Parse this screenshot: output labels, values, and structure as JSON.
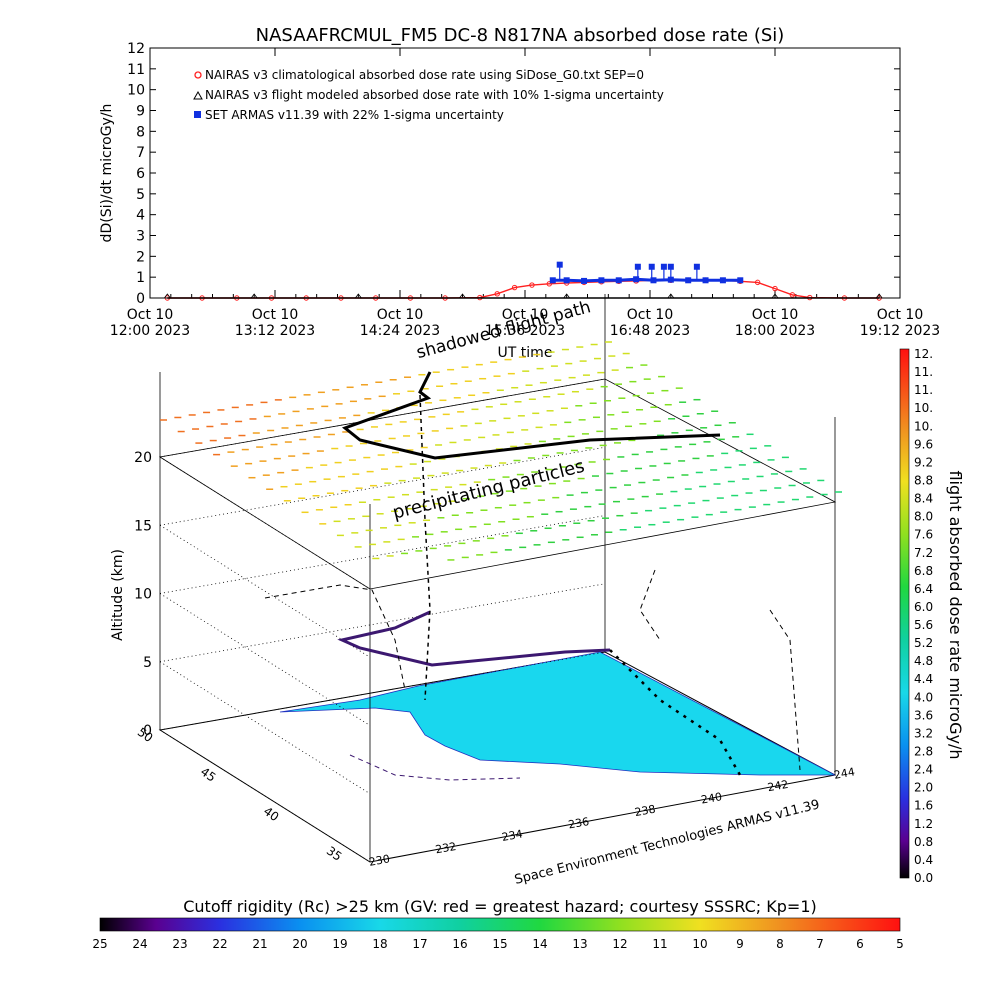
{
  "chart_data": [
    {
      "type": "line",
      "title": "NASAAFRCMUL_FM5 DC-8   N817NA absorbed dose rate (Si)",
      "ylabel": "dD(Si)/dt microGy/h",
      "xlabel": "UT time",
      "ylim": [
        0,
        12
      ],
      "y_ticks": [
        "0",
        "1",
        "2",
        "3",
        "4",
        "5",
        "6",
        "7",
        "8",
        "9",
        "10",
        "11",
        "12"
      ],
      "x_ticks": [
        {
          "line1": "Oct 10",
          "line2": "12:00 2023"
        },
        {
          "line1": "Oct 10",
          "line2": "13:12 2023"
        },
        {
          "line1": "Oct 10",
          "line2": "14:24 2023"
        },
        {
          "line1": "Oct 10",
          "line2": "15:36 2023"
        },
        {
          "line1": "Oct 10",
          "line2": "16:48 2023"
        },
        {
          "line1": "Oct 10",
          "line2": "18:00 2023"
        },
        {
          "line1": "Oct 10",
          "line2": "19:12 2023"
        }
      ],
      "legend": [
        {
          "label": "NAIRAS v3 climatological absorbed dose rate using SiDose_G0.txt SEP=0",
          "color": "#ff2020",
          "marker": "circle"
        },
        {
          "label": "NAIRAS v3 flight modeled absorbed dose rate with 10% 1-sigma uncertainty",
          "color": "#000000",
          "marker": "triangle"
        },
        {
          "label": "SET ARMAS v11.39 with 22% 1-sigma uncertainty",
          "color": "#1030e0",
          "marker": "square"
        }
      ],
      "legend_position": "top-left",
      "series": [
        {
          "name": "NAIRAS v3 climatological absorbed dose rate using SiDose_G0.txt SEP=0",
          "color": "#ff2020",
          "x": [
            "12:10",
            "12:30",
            "12:50",
            "13:10",
            "13:30",
            "13:50",
            "14:10",
            "14:30",
            "14:50",
            "15:10",
            "15:20",
            "15:30",
            "15:40",
            "15:50",
            "16:00",
            "16:10",
            "16:20",
            "16:30",
            "16:40",
            "16:50",
            "17:00",
            "17:10",
            "17:20",
            "17:30",
            "17:40",
            "17:50",
            "18:00",
            "18:10",
            "18:20",
            "18:40",
            "19:00"
          ],
          "y": [
            0,
            0,
            0,
            0,
            0,
            0,
            0,
            0,
            0,
            0.02,
            0.2,
            0.5,
            0.62,
            0.68,
            0.72,
            0.75,
            0.78,
            0.8,
            0.82,
            0.85,
            0.85,
            0.86,
            0.86,
            0.85,
            0.8,
            0.75,
            0.45,
            0.15,
            0.02,
            0,
            0
          ]
        },
        {
          "name": "NAIRAS v3 flight modeled absorbed dose rate with 10% 1-sigma uncertainty",
          "color": "#000000",
          "x": [
            "12:10",
            "13:00",
            "14:00",
            "15:00",
            "16:00",
            "17:00",
            "18:00",
            "19:00"
          ],
          "y": [
            0,
            0,
            0,
            0,
            0,
            0,
            0,
            0
          ]
        },
        {
          "name": "SET ARMAS v11.39 with 22% 1-sigma uncertainty",
          "color": "#1030e0",
          "x": [
            "15:52",
            "16:00",
            "16:10",
            "16:20",
            "16:30",
            "16:40",
            "16:50",
            "17:00",
            "17:10",
            "17:20",
            "17:30",
            "17:40"
          ],
          "y": [
            0.85,
            0.85,
            0.82,
            0.85,
            0.85,
            0.9,
            0.85,
            0.88,
            0.85,
            0.85,
            0.85,
            0.85
          ],
          "spikes": [
            {
              "x": "15:56",
              "y": 1.6
            },
            {
              "x": "16:41",
              "y": 1.5
            },
            {
              "x": "16:49",
              "y": 1.5
            },
            {
              "x": "16:56",
              "y": 1.5
            },
            {
              "x": "17:00",
              "y": 1.5
            },
            {
              "x": "17:15",
              "y": 1.5
            }
          ]
        }
      ]
    },
    {
      "type": "scatter",
      "ylabel": "Altitude (km)",
      "xlabel": "Space Environment Technologies ARMAS v11.39",
      "z_ticks": [
        "0",
        "5",
        "10",
        "15",
        "20"
      ],
      "lat_ticks": [
        "50",
        "45",
        "40",
        "35"
      ],
      "lon_ticks": [
        "230",
        "232",
        "234",
        "236",
        "238",
        "240",
        "242",
        "244"
      ],
      "annotations": [
        "shadowed flight path",
        "precipitating particles"
      ],
      "colorbar_right": {
        "label": "flight absorbed dose rate microGy/h",
        "ticks": [
          "12.",
          "11.",
          "11.",
          "10.",
          "10.",
          "9.6",
          "9.2",
          "8.8",
          "8.4",
          "8.0",
          "7.6",
          "7.2",
          "6.8",
          "6.4",
          "6.0",
          "5.6",
          "5.2",
          "4.8",
          "4.4",
          "4.0",
          "3.6",
          "3.2",
          "2.8",
          "2.4",
          "2.0",
          "1.6",
          "1.2",
          "0.8",
          "0.4",
          "0.0"
        ]
      },
      "colorbar_bottom": {
        "label": "Cutoff rigidity (Rc) >25 km (GV: red = greatest hazard; courtesy SSSRC; Kp=1)",
        "ticks": [
          "25",
          "24",
          "23",
          "22",
          "21",
          "20",
          "19",
          "18",
          "17",
          "16",
          "15",
          "14",
          "13",
          "12",
          "11",
          "10",
          "9",
          "8",
          "7",
          "6",
          "5"
        ]
      },
      "colors": {
        "map_fill": "#19d7ee",
        "flight_line": "#000000",
        "shadow_line": "#3c1870"
      }
    }
  ]
}
